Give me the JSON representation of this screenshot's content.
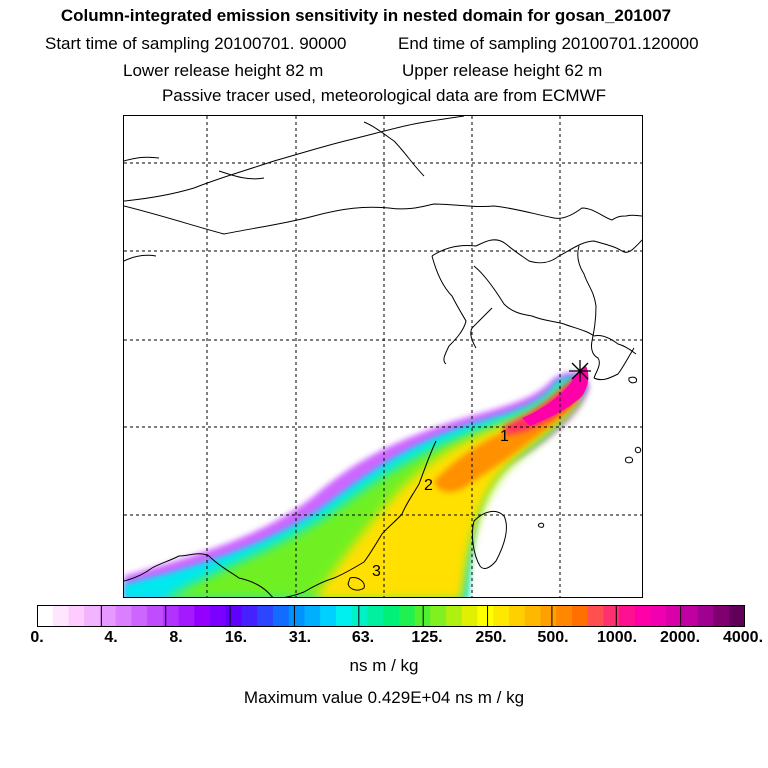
{
  "header": {
    "title": "Column-integrated emission sensitivity in nested domain for gosan_201007",
    "start_label": "Start time of sampling 20100701. 90000",
    "end_label": "End time of sampling 20100701.120000",
    "lower_label": "Lower release height   82 m",
    "upper_label": "Upper release height   62 m",
    "tracer_note": "Passive tracer used, meteorological data are from ECMWF"
  },
  "map": {
    "region_labels": [
      "1",
      "2",
      "3"
    ],
    "receptor": "gosan"
  },
  "legend": {
    "colors": [
      "#ffffff",
      "#ffe6ff",
      "#ffccff",
      "#f2b3ff",
      "#e699ff",
      "#d97fff",
      "#cc66ff",
      "#bf4dff",
      "#b233ff",
      "#a31aff",
      "#9400ff",
      "#7a00ff",
      "#6000ff",
      "#4620ff",
      "#2c46ff",
      "#126cff",
      "#0092ff",
      "#00b0ff",
      "#00d0ff",
      "#00f0f0",
      "#00f0c8",
      "#00f0a0",
      "#00f078",
      "#20f050",
      "#50f030",
      "#80f020",
      "#b0f010",
      "#e0f000",
      "#ffff00",
      "#ffe800",
      "#ffd000",
      "#ffb800",
      "#ffa000",
      "#ff8800",
      "#ff7000",
      "#ff5050",
      "#ff3070",
      "#ff1090",
      "#ff00a8",
      "#f000b0",
      "#d800a8",
      "#c000a0",
      "#a00090",
      "#800070",
      "#600058"
    ],
    "tick_labels": [
      "0.",
      "4.",
      "8.",
      "16.",
      "31.",
      "63.",
      "125.",
      "250.",
      "500.",
      "1000.",
      "2000.",
      "4000."
    ],
    "unit": "ns m / kg",
    "max_value_text": "Maximum value  0.429E+04 ns m / kg"
  }
}
